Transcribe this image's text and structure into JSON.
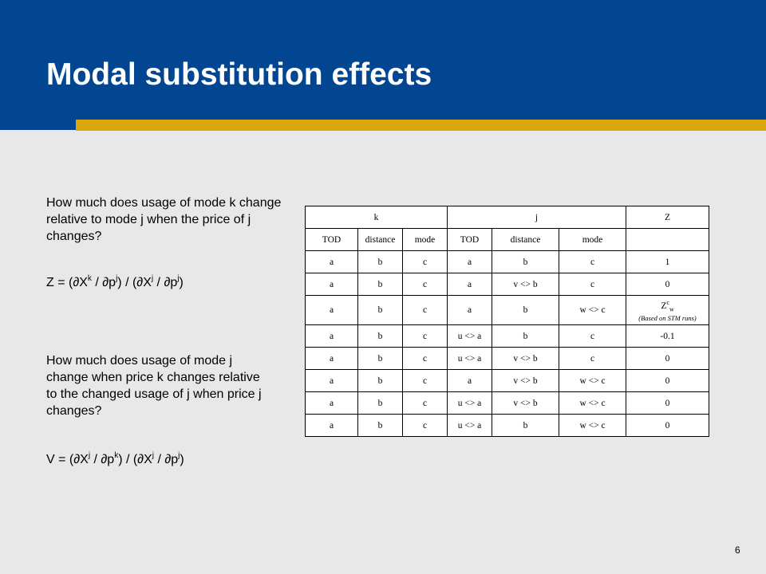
{
  "slide": {
    "title": "Modal substitution effects",
    "page_number": "6",
    "colors": {
      "header": "#024590",
      "stripe": "#daa60d",
      "background": "#e8e8e8"
    }
  },
  "left": {
    "q1": "How much does usage of mode k change relative to mode j when the price of j changes?",
    "formula1": {
      "a": "Z = (∂X",
      "b": "k",
      "c": " / ∂p",
      "d": "j",
      "e": ") / (∂X",
      "f": "j",
      "g": " / ∂p",
      "h": "j",
      "i": ")"
    },
    "q2": "How much does usage of mode j change when price k changes relative to the changed usage of j when price j changes?",
    "formula2": {
      "a": "V = (∂X",
      "b": "j",
      "c": " / ∂p",
      "d": "k",
      "e": ") / (∂X",
      "f": "j",
      "g": " / ∂p",
      "h": "j",
      "i": ")"
    }
  },
  "table": {
    "group_headers": [
      "k",
      "j",
      "Z"
    ],
    "columns": [
      "TOD",
      "distance",
      "mode",
      "TOD",
      "distance",
      "mode",
      ""
    ],
    "rows": [
      [
        "a",
        "b",
        "c",
        "a",
        "b",
        "c",
        "1"
      ],
      [
        "a",
        "b",
        "c",
        "a",
        "v <> b",
        "c",
        "0"
      ],
      [
        "a",
        "b",
        "c",
        "a",
        "b",
        "w <> c",
        ""
      ],
      [
        "a",
        "b",
        "c",
        "u <> a",
        "b",
        "c",
        "-0.1"
      ],
      [
        "a",
        "b",
        "c",
        "u <> a",
        "v <> b",
        "c",
        "0"
      ],
      [
        "a",
        "b",
        "c",
        "a",
        "v <> b",
        "w <> c",
        "0"
      ],
      [
        "a",
        "b",
        "c",
        "u <> a",
        "v <> b",
        "w <> c",
        "0"
      ],
      [
        "a",
        "b",
        "c",
        "u <> a",
        "b",
        "w <> c",
        "0"
      ]
    ],
    "zw_cell": {
      "base": "Z",
      "sup": "c",
      "sub": "w",
      "note": "(Based on STM runs)"
    }
  }
}
